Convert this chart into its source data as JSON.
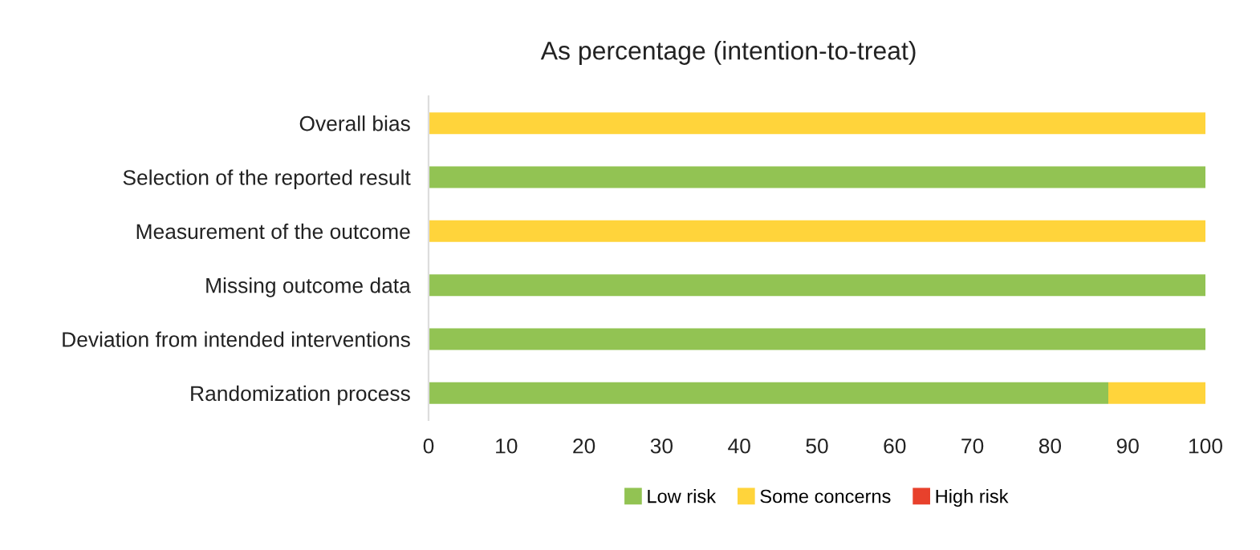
{
  "chart_data": {
    "type": "bar",
    "orientation": "horizontal",
    "stacked": true,
    "title": "As percentage (intention-to-treat)",
    "categories": [
      "Overall bias",
      "Selection of the reported result",
      "Measurement of the outcome",
      "Missing outcome data",
      "Deviation from intended interventions",
      "Randomization process"
    ],
    "series": [
      {
        "name": "Low risk",
        "color": "#92c353",
        "values": [
          0,
          100,
          0,
          100,
          100,
          87.5
        ]
      },
      {
        "name": "Some concerns",
        "color": "#ffd43b",
        "values": [
          100,
          0,
          100,
          0,
          0,
          12.5
        ]
      },
      {
        "name": "High risk",
        "color": "#e8412c",
        "values": [
          0,
          0,
          0,
          0,
          0,
          0
        ]
      }
    ],
    "xlim": [
      0,
      100
    ],
    "xticks": [
      0,
      10,
      20,
      30,
      40,
      50,
      60,
      70,
      80,
      90,
      100
    ],
    "grid": false,
    "legend": "bottom"
  }
}
